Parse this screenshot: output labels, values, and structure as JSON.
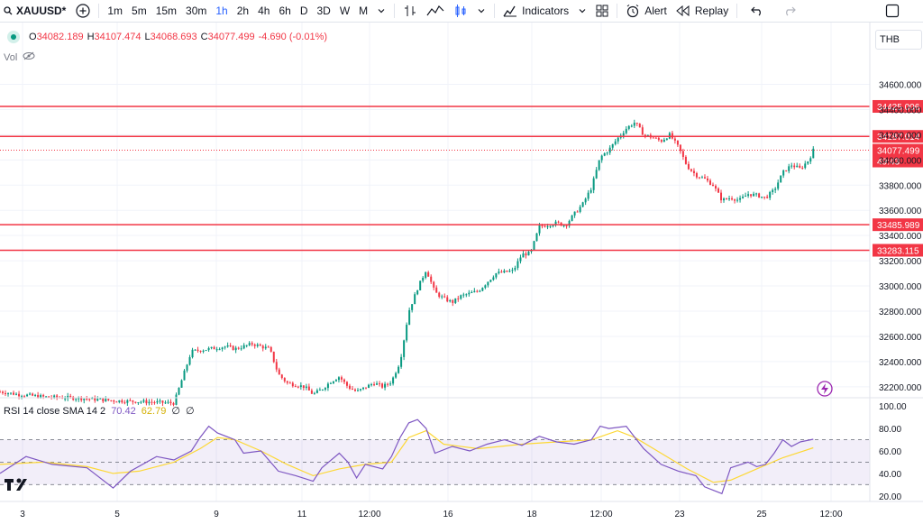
{
  "toolbar": {
    "symbol": "XAUUSD",
    "symbol_suffix": "*",
    "intervals": [
      "1m",
      "5m",
      "15m",
      "30m",
      "1h",
      "2h",
      "4h",
      "6h",
      "D",
      "3D",
      "W",
      "M"
    ],
    "active_interval": "1h",
    "indicators_label": "Indicators",
    "alert_label": "Alert",
    "replay_label": "Replay",
    "icons": [
      "add-symbol-icon",
      "chevron-down-icon",
      "bar-style-icon",
      "line-style-icon",
      "candle-style-icon",
      "indicators-icon",
      "templates-icon",
      "alert-icon",
      "replay-icon",
      "undo-icon",
      "redo-icon",
      "fullscreen-icon"
    ]
  },
  "legend": {
    "o_label": "O",
    "o_value": "34082.189",
    "h_label": "H",
    "h_value": "34107.474",
    "l_label": "L",
    "l_value": "34068.693",
    "c_label": "C",
    "c_value": "34077.499",
    "change": "-4.690 (-0.01%)",
    "vol_label": "Vol"
  },
  "currency": "THB",
  "rsi_legend": {
    "name": "RSI 14 close SMA 14 2",
    "rsi_value": "70.42",
    "sma_value": "62.79",
    "extra1": "∅",
    "extra2": "∅"
  },
  "colors": {
    "up": "#089981",
    "down": "#f23645",
    "rsi_line": "#7e57c2",
    "rsi_sma": "#fdd835",
    "level_line": "#f23645"
  },
  "chart_data": {
    "type": "candlestick",
    "price_axis": {
      "ticks": [
        "34600.000",
        "34400.000",
        "34200.000",
        "34000.000",
        "33800.000",
        "33600.000",
        "33400.000",
        "33200.000",
        "33000.000",
        "32800.000",
        "32600.000",
        "32400.000",
        "32200.000"
      ],
      "range": [
        32120,
        34840
      ]
    },
    "horizontal_levels": [
      {
        "value": 34425.006,
        "label": "34425.006"
      },
      {
        "value": 34187.014,
        "label": "34187.014"
      },
      {
        "value": 33485.989,
        "label": "33485.989"
      },
      {
        "value": 33283.115,
        "label": "33283.115"
      }
    ],
    "last_price": {
      "value": 34077.499,
      "label": "34077.499",
      "countdown": "49:43"
    },
    "time_axis": {
      "labels": [
        "3",
        "5",
        "9",
        "11",
        "12:00",
        "16",
        "18",
        "12:00",
        "23",
        "25",
        "12:00"
      ]
    },
    "price_path": [
      [
        0,
        32160
      ],
      [
        0.02,
        32140
      ],
      [
        0.05,
        32120
      ],
      [
        0.09,
        32110
      ],
      [
        0.13,
        32090
      ],
      [
        0.17,
        32080
      ],
      [
        0.2,
        32070
      ],
      [
        0.22,
        32480
      ],
      [
        0.24,
        32500
      ],
      [
        0.26,
        32520
      ],
      [
        0.27,
        32500
      ],
      [
        0.28,
        32520
      ],
      [
        0.29,
        32540
      ],
      [
        0.31,
        32500
      ],
      [
        0.32,
        32300
      ],
      [
        0.33,
        32230
      ],
      [
        0.35,
        32200
      ],
      [
        0.36,
        32140
      ],
      [
        0.37,
        32180
      ],
      [
        0.38,
        32240
      ],
      [
        0.39,
        32280
      ],
      [
        0.4,
        32200
      ],
      [
        0.41,
        32160
      ],
      [
        0.43,
        32230
      ],
      [
        0.44,
        32200
      ],
      [
        0.45,
        32240
      ],
      [
        0.46,
        32400
      ],
      [
        0.47,
        32800
      ],
      [
        0.48,
        32980
      ],
      [
        0.49,
        33130
      ],
      [
        0.5,
        32950
      ],
      [
        0.51,
        32900
      ],
      [
        0.52,
        32870
      ],
      [
        0.53,
        32920
      ],
      [
        0.55,
        32960
      ],
      [
        0.57,
        33100
      ],
      [
        0.59,
        33120
      ],
      [
        0.6,
        33250
      ],
      [
        0.61,
        33260
      ],
      [
        0.62,
        33470
      ],
      [
        0.64,
        33500
      ],
      [
        0.65,
        33480
      ],
      [
        0.66,
        33570
      ],
      [
        0.67,
        33650
      ],
      [
        0.68,
        33780
      ],
      [
        0.69,
        34020
      ],
      [
        0.7,
        34080
      ],
      [
        0.71,
        34170
      ],
      [
        0.72,
        34250
      ],
      [
        0.73,
        34300
      ],
      [
        0.74,
        34200
      ],
      [
        0.75,
        34180
      ],
      [
        0.76,
        34150
      ],
      [
        0.77,
        34200
      ],
      [
        0.78,
        34100
      ],
      [
        0.79,
        33950
      ],
      [
        0.8,
        33880
      ],
      [
        0.81,
        33850
      ],
      [
        0.82,
        33800
      ],
      [
        0.83,
        33680
      ],
      [
        0.84,
        33700
      ],
      [
        0.85,
        33680
      ],
      [
        0.86,
        33730
      ],
      [
        0.87,
        33720
      ],
      [
        0.88,
        33700
      ],
      [
        0.89,
        33760
      ],
      [
        0.9,
        33900
      ],
      [
        0.91,
        33960
      ],
      [
        0.92,
        33930
      ],
      [
        0.93,
        34000
      ],
      [
        0.935,
        34077
      ]
    ],
    "rsi": {
      "range": [
        15,
        105
      ],
      "ticks": [
        "100.00",
        "80.00",
        "60.00",
        "40.00",
        "20.00"
      ],
      "bands": [
        70,
        50,
        30
      ],
      "values": [
        [
          0,
          40
        ],
        [
          0.03,
          55
        ],
        [
          0.06,
          48
        ],
        [
          0.1,
          45
        ],
        [
          0.13,
          27
        ],
        [
          0.15,
          42
        ],
        [
          0.18,
          55
        ],
        [
          0.2,
          52
        ],
        [
          0.22,
          60
        ],
        [
          0.23,
          72
        ],
        [
          0.24,
          82
        ],
        [
          0.25,
          76
        ],
        [
          0.27,
          70
        ],
        [
          0.28,
          58
        ],
        [
          0.3,
          60
        ],
        [
          0.32,
          42
        ],
        [
          0.34,
          38
        ],
        [
          0.36,
          33
        ],
        [
          0.37,
          45
        ],
        [
          0.39,
          58
        ],
        [
          0.4,
          50
        ],
        [
          0.41,
          36
        ],
        [
          0.42,
          48
        ],
        [
          0.44,
          44
        ],
        [
          0.45,
          55
        ],
        [
          0.46,
          72
        ],
        [
          0.47,
          85
        ],
        [
          0.48,
          88
        ],
        [
          0.49,
          80
        ],
        [
          0.5,
          58
        ],
        [
          0.52,
          64
        ],
        [
          0.54,
          60
        ],
        [
          0.56,
          66
        ],
        [
          0.58,
          70
        ],
        [
          0.6,
          65
        ],
        [
          0.62,
          73
        ],
        [
          0.64,
          68
        ],
        [
          0.66,
          66
        ],
        [
          0.68,
          70
        ],
        [
          0.69,
          82
        ],
        [
          0.7,
          80
        ],
        [
          0.72,
          82
        ],
        [
          0.73,
          72
        ],
        [
          0.74,
          62
        ],
        [
          0.76,
          48
        ],
        [
          0.78,
          42
        ],
        [
          0.8,
          38
        ],
        [
          0.81,
          28
        ],
        [
          0.82,
          25
        ],
        [
          0.83,
          22
        ],
        [
          0.84,
          45
        ],
        [
          0.86,
          50
        ],
        [
          0.87,
          46
        ],
        [
          0.88,
          48
        ],
        [
          0.89,
          58
        ],
        [
          0.9,
          70
        ],
        [
          0.91,
          64
        ],
        [
          0.92,
          68
        ],
        [
          0.935,
          70.42
        ]
      ],
      "sma": [
        [
          0,
          48
        ],
        [
          0.05,
          50
        ],
        [
          0.1,
          46
        ],
        [
          0.13,
          40
        ],
        [
          0.16,
          42
        ],
        [
          0.2,
          50
        ],
        [
          0.23,
          62
        ],
        [
          0.25,
          72
        ],
        [
          0.27,
          70
        ],
        [
          0.3,
          60
        ],
        [
          0.33,
          48
        ],
        [
          0.36,
          38
        ],
        [
          0.39,
          44
        ],
        [
          0.42,
          48
        ],
        [
          0.45,
          50
        ],
        [
          0.47,
          72
        ],
        [
          0.49,
          78
        ],
        [
          0.51,
          66
        ],
        [
          0.55,
          62
        ],
        [
          0.6,
          66
        ],
        [
          0.64,
          68
        ],
        [
          0.68,
          70
        ],
        [
          0.71,
          78
        ],
        [
          0.73,
          72
        ],
        [
          0.76,
          58
        ],
        [
          0.79,
          44
        ],
        [
          0.82,
          32
        ],
        [
          0.84,
          34
        ],
        [
          0.87,
          44
        ],
        [
          0.9,
          54
        ],
        [
          0.935,
          62.79
        ]
      ]
    }
  }
}
